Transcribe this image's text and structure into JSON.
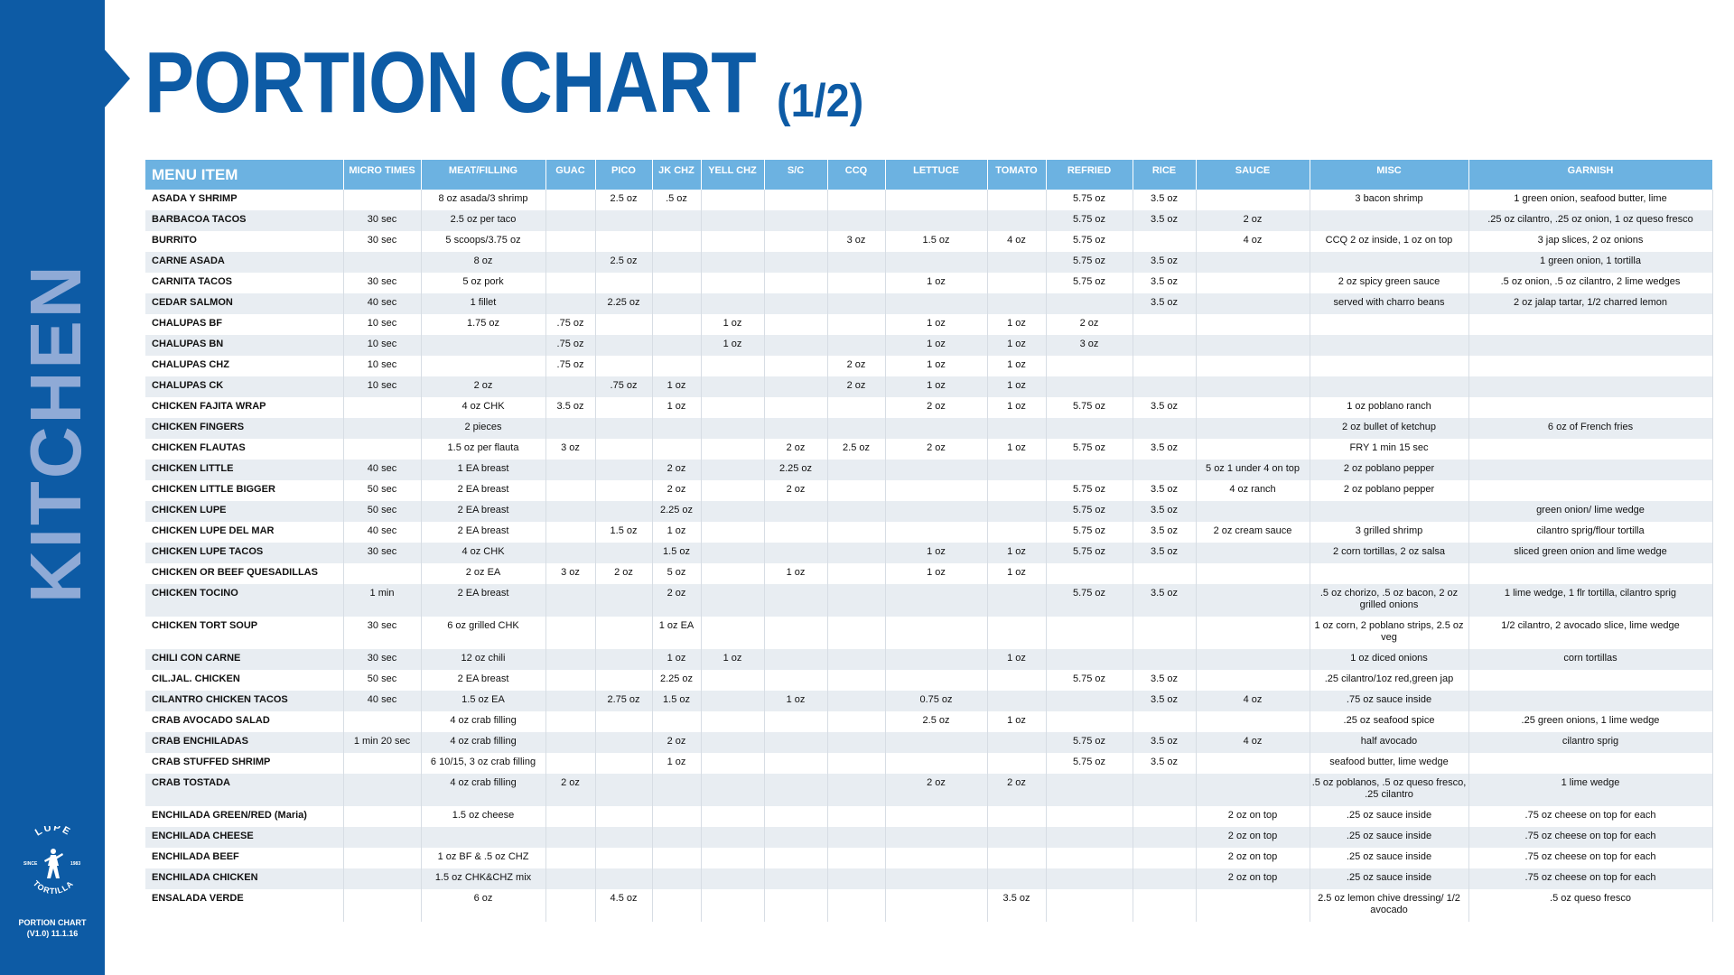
{
  "header": {
    "title": "PORTION CHART",
    "subtitle": "(1/2)"
  },
  "sidebar": {
    "vertical_label": "KITCHEN",
    "logo_top": "LUPE",
    "logo_bottom": "TORTILLA",
    "logo_since": "SINCE",
    "logo_year": "1983",
    "footer_line1": "PORTION CHART",
    "footer_line2": "(V1.0) 11.1.16"
  },
  "table": {
    "columns": [
      "MENU ITEM",
      "MICRO TIMES",
      "MEAT/FILLING",
      "GUAC",
      "PICO",
      "JK CHZ",
      "YELL CHZ",
      "S/C",
      "CCQ",
      "LETTUCE",
      "TOMATO",
      "REFRIED",
      "RICE",
      "SAUCE",
      "MISC",
      "GARNISH"
    ],
    "rows": [
      [
        "ASADA Y SHRIMP",
        "",
        "8 oz asada/3 shrimp",
        "",
        "2.5 oz",
        ".5 oz",
        "",
        "",
        "",
        "",
        "",
        "5.75 oz",
        "3.5 oz",
        "",
        "3 bacon shrimp",
        "1 green onion, seafood butter, lime"
      ],
      [
        "BARBACOA TACOS",
        "30 sec",
        "2.5 oz per taco",
        "",
        "",
        "",
        "",
        "",
        "",
        "",
        "",
        "5.75 oz",
        "3.5 oz",
        "2 oz",
        "",
        ".25 oz cilantro, .25 oz onion, 1 oz queso fresco"
      ],
      [
        "BURRITO",
        "30 sec",
        "5 scoops/3.75 oz",
        "",
        "",
        "",
        "",
        "",
        "3 oz",
        "1.5 oz",
        "4 oz",
        "5.75 oz",
        "",
        "4 oz",
        "CCQ 2 oz inside, 1 oz on top",
        "3 jap slices, 2 oz onions"
      ],
      [
        "CARNE ASADA",
        "",
        "8 oz",
        "",
        "2.5 oz",
        "",
        "",
        "",
        "",
        "",
        "",
        "5.75 oz",
        "3.5 oz",
        "",
        "",
        "1 green onion, 1 tortilla"
      ],
      [
        "CARNITA TACOS",
        "30 sec",
        "5 oz pork",
        "",
        "",
        "",
        "",
        "",
        "",
        "1 oz",
        "",
        "5.75 oz",
        "3.5 oz",
        "",
        "2 oz spicy green sauce",
        ".5 oz onion, .5 oz cilantro, 2 lime wedges"
      ],
      [
        "CEDAR SALMON",
        "40 sec",
        "1 fillet",
        "",
        "2.25 oz",
        "",
        "",
        "",
        "",
        "",
        "",
        "",
        "3.5 oz",
        "",
        "served with charro beans",
        "2 oz jalap tartar, 1/2 charred lemon"
      ],
      [
        "CHALUPAS BF",
        "10 sec",
        "1.75 oz",
        ".75 oz",
        "",
        "",
        "1 oz",
        "",
        "",
        "1 oz",
        "1 oz",
        "2 oz",
        "",
        "",
        "",
        ""
      ],
      [
        "CHALUPAS BN",
        "10 sec",
        "",
        ".75 oz",
        "",
        "",
        "1 oz",
        "",
        "",
        "1 oz",
        "1 oz",
        "3 oz",
        "",
        "",
        "",
        ""
      ],
      [
        "CHALUPAS CHZ",
        "10 sec",
        "",
        ".75 oz",
        "",
        "",
        "",
        "",
        "2 oz",
        "1 oz",
        "1 oz",
        "",
        "",
        "",
        "",
        ""
      ],
      [
        "CHALUPAS CK",
        "10 sec",
        "2 oz",
        "",
        ".75 oz",
        "1 oz",
        "",
        "",
        "2 oz",
        "1 oz",
        "1 oz",
        "",
        "",
        "",
        "",
        ""
      ],
      [
        "CHICKEN FAJITA WRAP",
        "",
        "4 oz CHK",
        "3.5 oz",
        "",
        "1 oz",
        "",
        "",
        "",
        "2 oz",
        "1 oz",
        "5.75 oz",
        "3.5 oz",
        "",
        "1 oz poblano ranch",
        ""
      ],
      [
        "CHICKEN FINGERS",
        "",
        "2 pieces",
        "",
        "",
        "",
        "",
        "",
        "",
        "",
        "",
        "",
        "",
        "",
        "2 oz bullet of ketchup",
        "6 oz of French fries"
      ],
      [
        "CHICKEN FLAUTAS",
        "",
        "1.5 oz per flauta",
        "3 oz",
        "",
        "",
        "",
        "2 oz",
        "2.5 oz",
        "2 oz",
        "1 oz",
        "5.75 oz",
        "3.5 oz",
        "",
        "FRY 1 min 15 sec",
        ""
      ],
      [
        "CHICKEN LITTLE",
        "40 sec",
        "1 EA breast",
        "",
        "",
        "2 oz",
        "",
        "2.25 oz",
        "",
        "",
        "",
        "",
        "",
        "5 oz 1 under 4 on top",
        "2 oz poblano pepper",
        ""
      ],
      [
        "CHICKEN LITTLE BIGGER",
        "50 sec",
        "2 EA breast",
        "",
        "",
        "2 oz",
        "",
        "2 oz",
        "",
        "",
        "",
        "5.75 oz",
        "3.5 oz",
        "4 oz ranch",
        "2 oz poblano pepper",
        ""
      ],
      [
        "CHICKEN LUPE",
        "50 sec",
        "2 EA  breast",
        "",
        "",
        "2.25 oz",
        "",
        "",
        "",
        "",
        "",
        "5.75 oz",
        "3.5 oz",
        "",
        "",
        "green onion/ lime wedge"
      ],
      [
        "CHICKEN LUPE DEL MAR",
        "40 sec",
        "2 EA  breast",
        "",
        "1.5 oz",
        "1 oz",
        "",
        "",
        "",
        "",
        "",
        "5.75 oz",
        "3.5 oz",
        "2 oz cream sauce",
        "3 grilled shrimp",
        "cilantro sprig/flour tortilla"
      ],
      [
        "CHICKEN LUPE TACOS",
        "30 sec",
        "4 oz  CHK",
        "",
        "",
        "1.5 oz",
        "",
        "",
        "",
        "1 oz",
        "1 oz",
        "5.75 oz",
        "3.5 oz",
        "",
        "2 corn tortillas,  2 oz salsa",
        "sliced green onion and lime wedge"
      ],
      [
        "CHICKEN OR BEEF QUESADILLAS",
        "",
        "2 oz EA",
        "3 oz",
        "2 oz",
        "5 oz",
        "",
        "1 oz",
        "",
        "1 oz",
        "1 oz",
        "",
        "",
        "",
        "",
        ""
      ],
      [
        "CHICKEN TOCINO",
        "1 min",
        "2 EA breast",
        "",
        "",
        "2 oz",
        "",
        "",
        "",
        "",
        "",
        "5.75 oz",
        "3.5 oz",
        "",
        ".5 oz chorizo, .5 oz bacon, 2 oz grilled onions",
        "1 lime wedge, 1 flr tortilla, cilantro sprig"
      ],
      [
        "CHICKEN TORT SOUP",
        "30 sec",
        "6 oz grilled CHK",
        "",
        "",
        "1 oz EA",
        "",
        "",
        "",
        "",
        "",
        "",
        "",
        "",
        "1 oz corn, 2 poblano strips, 2.5 oz veg",
        "1/2 cilantro, 2 avocado slice, lime wedge"
      ],
      [
        "CHILI CON CARNE",
        "30 sec",
        "12 oz chili",
        "",
        "",
        "1 oz",
        "1 oz",
        "",
        "",
        "",
        "1 oz",
        "",
        "",
        "",
        "1 oz diced onions",
        "corn tortillas"
      ],
      [
        "CIL.JAL. CHICKEN",
        "50 sec",
        "2 EA  breast",
        "",
        "",
        "2.25 oz",
        "",
        "",
        "",
        "",
        "",
        "5.75 oz",
        "3.5 oz",
        "",
        ".25 cilantro/1oz red,green jap",
        ""
      ],
      [
        "CILANTRO CHICKEN TACOS",
        "40 sec",
        "1.5 oz EA",
        "",
        "2.75 oz",
        "1.5 oz",
        "",
        "1 oz",
        "",
        "0.75 oz",
        "",
        "",
        "3.5 oz",
        "4 oz",
        ".75 oz sauce inside",
        ""
      ],
      [
        "CRAB AVOCADO SALAD",
        "",
        "4 oz crab filling",
        "",
        "",
        "",
        "",
        "",
        "",
        "2.5 oz",
        "1 oz",
        "",
        "",
        "",
        ".25 oz seafood spice",
        ".25 green onions, 1 lime wedge"
      ],
      [
        "CRAB ENCHILADAS",
        "1 min 20 sec",
        "4 oz crab filling",
        "",
        "",
        "2 oz",
        "",
        "",
        "",
        "",
        "",
        "5.75 oz",
        "3.5 oz",
        "4 oz",
        "half avocado",
        "cilantro sprig"
      ],
      [
        "CRAB STUFFED SHRIMP",
        "",
        "6 10/15, 3 oz crab filling",
        "",
        "",
        "1 oz",
        "",
        "",
        "",
        "",
        "",
        "5.75 oz",
        "3.5 oz",
        "",
        "seafood butter, lime wedge",
        ""
      ],
      [
        "CRAB TOSTADA",
        "",
        "4 oz crab filling",
        "2 oz",
        "",
        "",
        "",
        "",
        "",
        "2 oz",
        "2 oz",
        "",
        "",
        "",
        ".5 oz poblanos, .5 oz queso fresco, .25 cilantro",
        "1 lime wedge"
      ],
      [
        "ENCHILADA GREEN/RED (Maria)",
        "",
        "1.5 oz cheese",
        "",
        "",
        "",
        "",
        "",
        "",
        "",
        "",
        "",
        "",
        "2 oz on top",
        ".25 oz sauce inside",
        ".75 oz cheese on top for each"
      ],
      [
        "ENCHILADA CHEESE",
        "",
        "",
        "",
        "",
        "",
        "",
        "",
        "",
        "",
        "",
        "",
        "",
        "2 oz on top",
        ".25 oz sauce inside",
        ".75 oz cheese on top for each"
      ],
      [
        "ENCHILADA BEEF",
        "",
        "1 oz BF & .5 oz CHZ",
        "",
        "",
        "",
        "",
        "",
        "",
        "",
        "",
        "",
        "",
        "2 oz on top",
        ".25 oz sauce inside",
        ".75 oz cheese on top for each"
      ],
      [
        "ENCHILADA CHICKEN",
        "",
        "1.5 oz CHK&CHZ mix",
        "",
        "",
        "",
        "",
        "",
        "",
        "",
        "",
        "",
        "",
        "2 oz on top",
        ".25 oz sauce inside",
        ".75 oz cheese on top for each"
      ],
      [
        "ENSALADA VERDE",
        "",
        "6 oz",
        "",
        "4.5 oz",
        "",
        "",
        "",
        "",
        "",
        "3.5 oz",
        "",
        "",
        "",
        "2.5 oz lemon chive dressing/ 1/2 avocado",
        ".5 oz queso fresco"
      ]
    ],
    "tall_rows": [
      19,
      20,
      27,
      32
    ]
  }
}
